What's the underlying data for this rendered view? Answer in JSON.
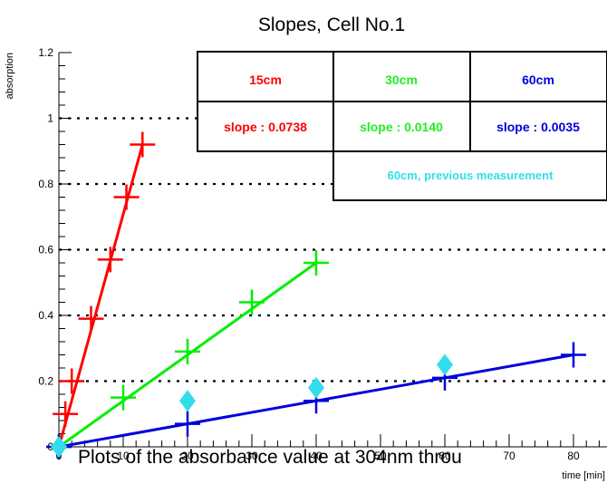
{
  "chart_data": {
    "type": "scatter",
    "title": "Slopes, Cell No.1",
    "xlabel": "time [min]",
    "ylabel": "absorption",
    "xlim": [
      0,
      85
    ],
    "ylim": [
      0,
      1.2
    ],
    "x_ticks": [
      0,
      10,
      20,
      30,
      40,
      50,
      60,
      70,
      80
    ],
    "y_ticks": [
      0,
      0.2,
      0.4,
      0.6,
      0.8,
      1,
      1.2
    ],
    "y_tick_labels": [
      "0",
      "0.2",
      "0.4",
      "0.6",
      "0.8",
      "1",
      "1.2"
    ],
    "grid": "horizontal dotted",
    "series": [
      {
        "name": "15cm",
        "color": "#ff0000",
        "marker": "cross",
        "x": [
          0,
          1,
          2,
          5,
          8,
          10.5,
          13
        ],
        "y": [
          0,
          0.1,
          0.2,
          0.39,
          0.57,
          0.76,
          0.92
        ],
        "fit": {
          "slope": 0.0738,
          "x": [
            0,
            13
          ],
          "y": [
            0,
            0.92
          ]
        }
      },
      {
        "name": "30cm",
        "color": "#00ee00",
        "marker": "cross",
        "x": [
          0,
          10,
          20,
          30,
          40
        ],
        "y": [
          0,
          0.15,
          0.29,
          0.44,
          0.56
        ],
        "fit": {
          "slope": 0.014,
          "x": [
            0,
            40
          ],
          "y": [
            0,
            0.56
          ]
        }
      },
      {
        "name": "60cm",
        "color": "#0000dd",
        "marker": "cross",
        "x": [
          0,
          20,
          40,
          60,
          80
        ],
        "y": [
          0,
          0.07,
          0.14,
          0.21,
          0.28
        ],
        "fit": {
          "slope": 0.0035,
          "x": [
            0,
            80
          ],
          "y": [
            0,
            0.28
          ]
        }
      },
      {
        "name": "60cm, previous measurement",
        "color": "#33ddee",
        "marker": "diamond",
        "x": [
          0,
          20,
          40,
          60
        ],
        "y": [
          0,
          0.14,
          0.18,
          0.25
        ]
      }
    ],
    "legend": {
      "position": "top-right",
      "headers": [
        "15cm",
        "30cm",
        "60cm"
      ],
      "slopes": [
        "slope : 0.0738",
        "slope : 0.0140",
        "slope : 0.0035"
      ],
      "note": "60cm, previous measurement"
    },
    "caption": "Plots of the absorbance value at 304nm throu"
  }
}
